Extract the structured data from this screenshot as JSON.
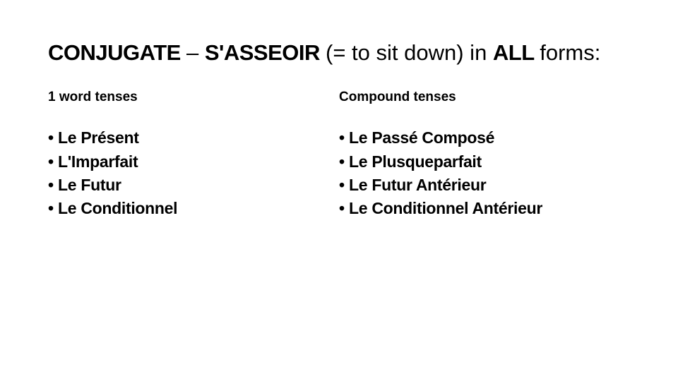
{
  "title": {
    "seg1": "CONJUGATE ",
    "seg_dash": "– ",
    "seg2": "S'ASSEOIR ",
    "seg3": "(= to sit down) in ",
    "seg4": "ALL ",
    "seg5": "forms:"
  },
  "left": {
    "header": "1 word tenses",
    "items": [
      "Le Présent",
      "L'Imparfait",
      "Le Futur",
      "Le Conditionnel"
    ]
  },
  "right": {
    "header": "Compound tenses",
    "items": [
      "Le Passé Composé",
      "Le Plusqueparfait",
      "Le Futur Antérieur",
      "Le Conditionnel Antérieur"
    ]
  },
  "styling": {
    "background_color": "#ffffff",
    "text_color": "#000000",
    "title_fontsize": 31,
    "header_fontsize": 19,
    "item_fontsize": 23,
    "bullet": "•"
  }
}
